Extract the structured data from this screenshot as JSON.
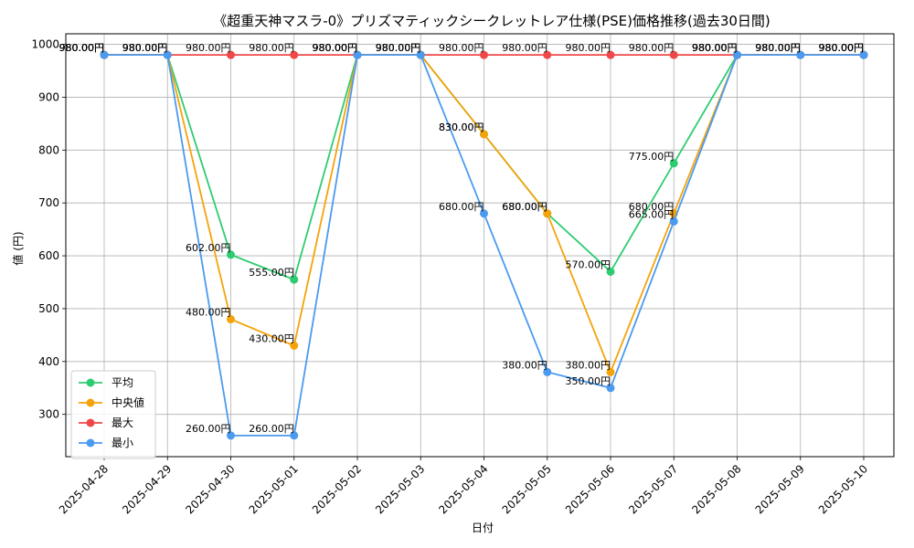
{
  "chart_data": {
    "type": "line",
    "title": "《超重天神マスラ-0》プリズマティックシークレットレア仕様(PSE)価格推移(過去30日間)",
    "xlabel": "日付",
    "ylabel": "値 (円)",
    "x": [
      "2025-04-28",
      "2025-04-29",
      "2025-04-30",
      "2025-05-01",
      "2025-05-02",
      "2025-05-03",
      "2025-05-04",
      "2025-05-05",
      "2025-05-06",
      "2025-05-07",
      "2025-05-08",
      "2025-05-09",
      "2025-05-10"
    ],
    "ylim": [
      220,
      1020
    ],
    "yticks": [
      300,
      400,
      500,
      600,
      700,
      800,
      900,
      1000
    ],
    "grid": true,
    "legend_position": "lower-left",
    "label_suffix": "円",
    "series": [
      {
        "name": "平均",
        "color": "#2ecc71",
        "values": [
          980,
          980,
          602,
          555,
          980,
          980,
          830,
          680,
          570,
          775,
          980,
          980,
          980
        ]
      },
      {
        "name": "中央値",
        "color": "#f5a30a",
        "values": [
          980,
          980,
          480,
          430,
          980,
          980,
          830,
          680,
          380,
          680,
          980,
          980,
          980
        ]
      },
      {
        "name": "最大",
        "color": "#f04848",
        "values": [
          980,
          980,
          980,
          980,
          980,
          980,
          980,
          980,
          980,
          980,
          980,
          980,
          980
        ]
      },
      {
        "name": "最小",
        "color": "#4a9af0",
        "values": [
          980,
          980,
          260,
          260,
          980,
          980,
          680,
          380,
          350,
          665,
          980,
          980,
          980
        ]
      }
    ]
  }
}
